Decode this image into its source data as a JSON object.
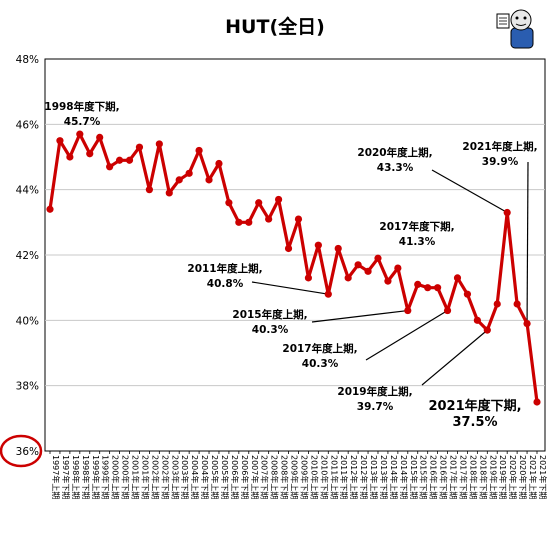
{
  "chart_data": {
    "type": "line",
    "title": "HUT(全日)",
    "ylim": [
      36,
      48
    ],
    "yticks": [
      "36%",
      "38%",
      "40%",
      "42%",
      "44%",
      "46%",
      "48%"
    ],
    "grid": true,
    "colors": {
      "line": "#cc0000",
      "marker": "#cc0000",
      "highlight_circle": "#cc0000"
    },
    "x": [
      "1997年上期",
      "1997年下期",
      "1998年上期",
      "1998年下期",
      "1999年上期",
      "1999年下期",
      "2000年上期",
      "2000年下期",
      "2001年上期",
      "2001年下期",
      "2002年上期",
      "2002年下期",
      "2003年上期",
      "2003年下期",
      "2004年上期",
      "2004年下期",
      "2005年上期",
      "2005年下期",
      "2006年上期",
      "2006年下期",
      "2007年上期",
      "2007年下期",
      "2008年上期",
      "2008年下期",
      "2009年上期",
      "2009年下期",
      "2010年上期",
      "2010年下期",
      "2011年上期",
      "2011年下期",
      "2012年上期",
      "2012年下期",
      "2013年上期",
      "2013年下期",
      "2014年上期",
      "2014年下期",
      "2015年上期",
      "2015年下期",
      "2016年上期",
      "2016年下期",
      "2017年上期",
      "2017年下期",
      "2018年上期",
      "2018年下期",
      "2019年上期",
      "2019年下期",
      "2020年上期",
      "2020年下期",
      "2021年上期",
      "2021年下期"
    ],
    "x_display": [
      "1997年上期",
      "1997年下期",
      "1998年上期",
      "1998年下期",
      "1999年上期",
      "1999年下期",
      "2000年上期",
      "2000年下期",
      "2001年上期",
      "2001年下期",
      "2002年上期",
      "2002年下期",
      "2003年上期",
      "2003年下期",
      "2004年上期",
      "2004年下期",
      "2005年上期",
      "2005年下期",
      "2006年上期",
      "2006年下期",
      "2007年上期",
      "2007年下期",
      "2008年上期",
      "2008年下期",
      "2009年上期",
      "2009年下期",
      "2010年上期",
      "2010年下期",
      "2011年上期",
      "2011年下期",
      "2012年上期",
      "2012年下期",
      "2013年上期",
      "2013年下期",
      "2014年上期",
      "2014年下期",
      "2015年上期",
      "2015年下期",
      "2016年上期",
      "2016年下期",
      "2017年上期",
      "2017年下期",
      "2018年上期",
      "2018年下期",
      "2019年上期",
      "2019年下期",
      "2020年上期",
      "2020年下期",
      "2021年上期",
      "2021年下期"
    ],
    "series": [
      {
        "values": [
          43.4,
          45.5,
          45.0,
          45.7,
          45.1,
          45.6,
          44.7,
          44.9,
          44.9,
          45.3,
          44.0,
          45.4,
          43.9,
          44.3,
          44.5,
          45.2,
          44.3,
          44.8,
          43.6,
          43.0,
          43.0,
          43.6,
          43.1,
          43.7,
          42.2,
          43.1,
          41.3,
          42.3,
          40.8,
          42.2,
          41.3,
          41.7,
          41.5,
          41.9,
          41.2,
          41.6,
          40.3,
          41.1,
          41.0,
          41.0,
          40.3,
          41.3,
          40.8,
          40.0,
          39.7,
          40.5,
          43.3,
          40.5,
          39.9,
          37.5
        ]
      }
    ],
    "annotations": [
      {
        "index": 3,
        "line1": "1998年度下期,",
        "line2": "45.7%"
      },
      {
        "index": 28,
        "line1": "2011年度上期,",
        "line2": "40.8%"
      },
      {
        "index": 36,
        "line1": "2015年度上期,",
        "line2": "40.3%"
      },
      {
        "index": 40,
        "line1": "2017年度上期,",
        "line2": "40.3%"
      },
      {
        "index": 41,
        "line1": "2017年度下期,",
        "line2": "41.3%"
      },
      {
        "index": 44,
        "line1": "2019年度上期,",
        "line2": "39.7%"
      },
      {
        "index": 46,
        "line1": "2020年度上期,",
        "line2": "43.3%"
      },
      {
        "index": 48,
        "line1": "2021年度上期,",
        "line2": "39.9%"
      },
      {
        "index": 49,
        "line1": "2021年度下期,",
        "line2": "37.5%"
      }
    ]
  }
}
